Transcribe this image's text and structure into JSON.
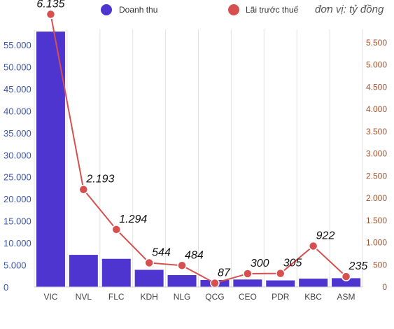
{
  "chart_data": {
    "type": "bar+line",
    "categories": [
      "VIC",
      "NVL",
      "FLC",
      "KDH",
      "NLG",
      "QCG",
      "CEO",
      "PDR",
      "KBC",
      "ASM"
    ],
    "series": [
      {
        "name": "Doanh thu",
        "type": "bar",
        "axis": "left",
        "color": "#4f35cf",
        "values": [
          58000,
          7300,
          6400,
          3900,
          2700,
          1600,
          1700,
          1500,
          1900,
          2000
        ]
      },
      {
        "name": "Lãi trước thuế",
        "type": "line",
        "axis": "right",
        "color": "#d5504f",
        "values": [
          6135,
          2193,
          1294,
          544,
          484,
          87,
          300,
          305,
          922,
          235
        ],
        "labels": [
          "6.135",
          "2.193",
          "1.294",
          "544",
          "484",
          "87",
          "300",
          "305",
          "922",
          "235"
        ]
      }
    ],
    "unit_note": "đơn vị: tỷ đồng",
    "y_left": {
      "ylim": [
        0,
        58500
      ],
      "ticks": [
        0,
        5000,
        10000,
        15000,
        20000,
        25000,
        30000,
        35000,
        40000,
        45000,
        50000,
        55000
      ],
      "tick_labels": [
        "0",
        "5.000",
        "10.000",
        "15.000",
        "20.000",
        "25.000",
        "30.000",
        "35.000",
        "40.000",
        "45.000",
        "50.000",
        "55.000"
      ]
    },
    "y_right": {
      "ylim": [
        0,
        6000
      ],
      "ticks": [
        0,
        500,
        1000,
        1500,
        2000,
        2500,
        3000,
        3500,
        4000,
        4500,
        5000,
        5500
      ],
      "tick_labels": [
        "0",
        "500",
        "1.000",
        "1.500",
        "2.000",
        "2.500",
        "3.000",
        "3.500",
        "4.000",
        "4.500",
        "5.000",
        "5.500"
      ]
    },
    "grid": "vertical",
    "legend_position": "top"
  }
}
